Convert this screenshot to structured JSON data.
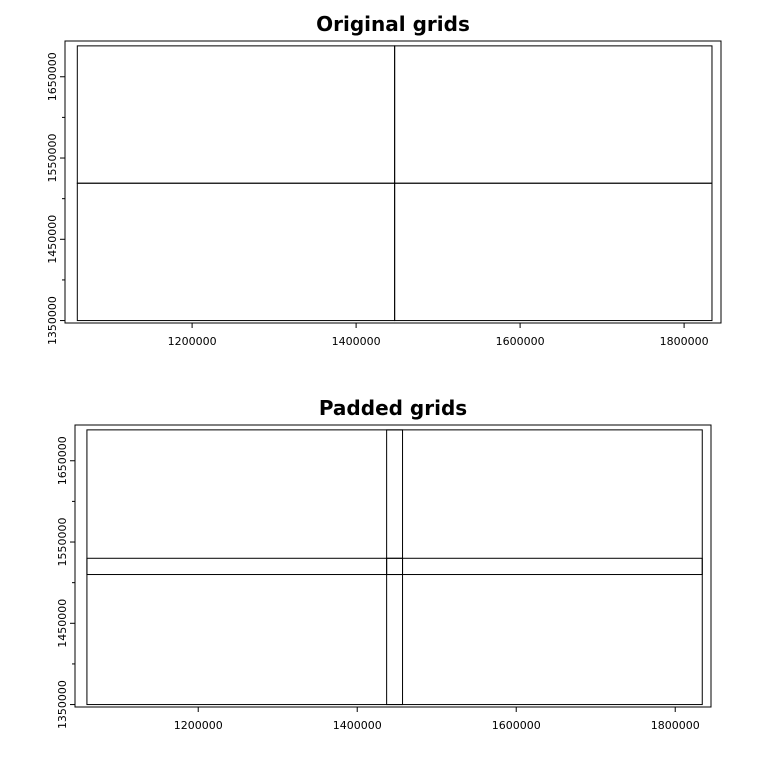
{
  "chart_data": [
    {
      "type": "grid-map",
      "title": "Original grids",
      "xlabel": "",
      "ylabel": "",
      "xlim": [
        1045000,
        1845000
      ],
      "ylim": [
        1347000,
        1694000
      ],
      "xticks": [
        1200000,
        1400000,
        1600000,
        1800000
      ],
      "yticks": [
        1350000,
        1450000,
        1550000,
        1650000
      ],
      "yminor": [
        1400000,
        1500000,
        1600000
      ],
      "grid": false,
      "cells": [
        {
          "xmin": 1060000,
          "xmax": 1447000,
          "ymin": 1350000,
          "ymax": 1519000
        },
        {
          "xmin": 1447000,
          "xmax": 1834000,
          "ymin": 1350000,
          "ymax": 1519000
        },
        {
          "xmin": 1060000,
          "xmax": 1447000,
          "ymin": 1519000,
          "ymax": 1688000
        },
        {
          "xmin": 1447000,
          "xmax": 1834000,
          "ymin": 1519000,
          "ymax": 1688000
        }
      ]
    },
    {
      "type": "grid-map",
      "title": "Padded grids",
      "xlabel": "",
      "ylabel": "",
      "xlim": [
        1045000,
        1845000
      ],
      "ylim": [
        1347000,
        1694000
      ],
      "xticks": [
        1200000,
        1400000,
        1600000,
        1800000
      ],
      "yticks": [
        1350000,
        1450000,
        1550000,
        1650000
      ],
      "yminor": [
        1400000,
        1500000,
        1600000
      ],
      "grid": false,
      "cells": [
        {
          "xmin": 1060000,
          "xmax": 1457000,
          "ymin": 1350000,
          "ymax": 1530000
        },
        {
          "xmin": 1437000,
          "xmax": 1834000,
          "ymin": 1350000,
          "ymax": 1530000
        },
        {
          "xmin": 1060000,
          "xmax": 1457000,
          "ymin": 1510000,
          "ymax": 1688000
        },
        {
          "xmin": 1437000,
          "xmax": 1834000,
          "ymin": 1510000,
          "ymax": 1688000
        }
      ]
    }
  ]
}
